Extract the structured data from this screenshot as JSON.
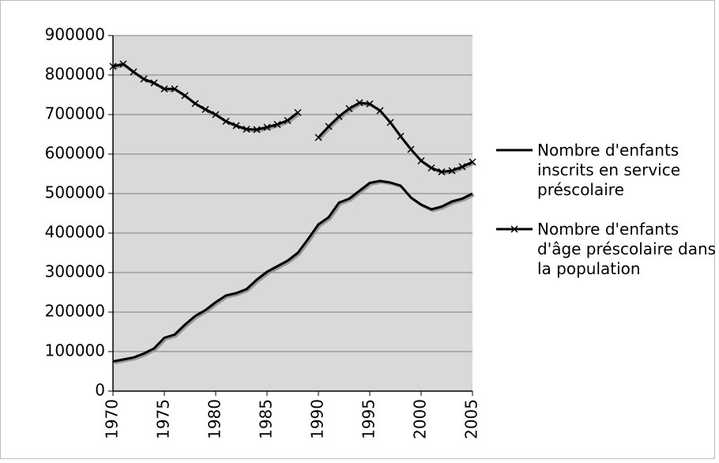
{
  "chart_data": {
    "type": "line",
    "x": [
      1970,
      1971,
      1972,
      1973,
      1974,
      1975,
      1976,
      1977,
      1978,
      1979,
      1980,
      1981,
      1982,
      1983,
      1984,
      1985,
      1986,
      1987,
      1988,
      1989,
      1990,
      1991,
      1992,
      1993,
      1994,
      1995,
      1996,
      1997,
      1998,
      1999,
      2000,
      2001,
      2002,
      2003,
      2004,
      2005
    ],
    "series": [
      {
        "name": "Nombre d'enfants inscrits en service préscolaire",
        "color": "#000000",
        "marker": "none",
        "values": [
          75000,
          80000,
          85000,
          95000,
          108000,
          135000,
          143000,
          168000,
          190000,
          205000,
          225000,
          242000,
          248000,
          258000,
          282000,
          302000,
          316000,
          330000,
          350000,
          385000,
          422000,
          440000,
          477000,
          487000,
          507000,
          527000,
          532000,
          528000,
          520000,
          490000,
          472000,
          460000,
          467000,
          480000,
          487000,
          500000
        ]
      },
      {
        "name": "Nombre d'enfants d'âge préscolaire dans la population",
        "color": "#000000",
        "marker": "x",
        "values": [
          822000,
          828000,
          808000,
          790000,
          780000,
          765000,
          765000,
          748000,
          728000,
          713000,
          700000,
          683000,
          672000,
          663000,
          662000,
          668000,
          675000,
          685000,
          705000,
          null,
          642000,
          670000,
          695000,
          715000,
          730000,
          727000,
          710000,
          680000,
          645000,
          612000,
          583000,
          565000,
          555000,
          558000,
          568000,
          580000
        ]
      }
    ],
    "xlim": [
      1970,
      2005
    ],
    "xticks": [
      1970,
      1975,
      1980,
      1985,
      1990,
      1995,
      2000,
      2005
    ],
    "ylim": [
      0,
      900000
    ],
    "yticks": [
      0,
      100000,
      200000,
      300000,
      400000,
      500000,
      600000,
      700000,
      800000,
      900000
    ],
    "grid": true,
    "legend": "right"
  }
}
